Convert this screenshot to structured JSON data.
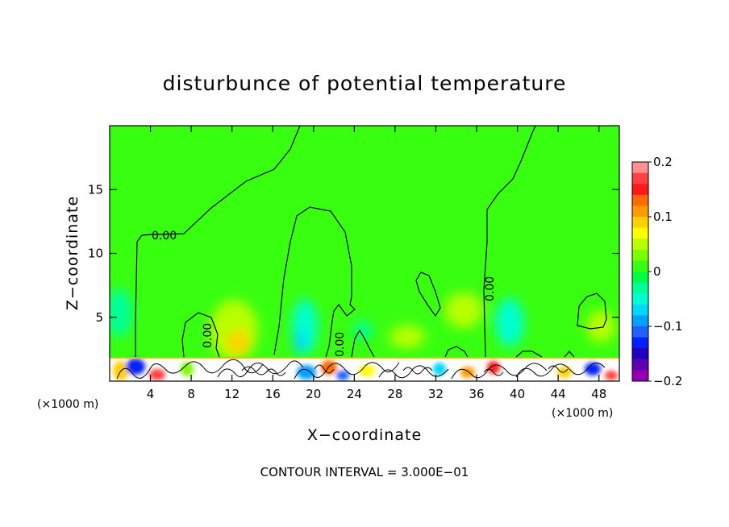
{
  "chart_data": {
    "type": "heatmap",
    "title": "disturbunce of potential temperature",
    "xlabel": "X−coordinate",
    "ylabel": "Z−coordinate",
    "x_unit": "(×1000 m)",
    "y_unit": "(×1000 m)",
    "xlim": [
      0,
      50
    ],
    "ylim": [
      0,
      20
    ],
    "x_ticks": [
      4,
      8,
      12,
      16,
      20,
      24,
      28,
      32,
      36,
      40,
      44,
      48
    ],
    "y_ticks": [
      5,
      10,
      15
    ],
    "colorbar": {
      "min": -0.2,
      "max": 0.2,
      "tick_values": [
        0.2,
        0.1,
        0,
        -0.1,
        -0.2
      ],
      "tick_labels": [
        "0.2",
        "0.1",
        "0",
        "−0.1",
        "−0.2"
      ],
      "colors": [
        "#ff9090",
        "#ff4040",
        "#ff1a1a",
        "#ff6a00",
        "#ff9a00",
        "#ffd000",
        "#ffff00",
        "#b8ff00",
        "#7cff00",
        "#38ff10",
        "#00ff40",
        "#00ff9a",
        "#00ffd0",
        "#00d8ff",
        "#00a0ff",
        "#2060ff",
        "#0020ff",
        "#2000c0",
        "#6000b0",
        "#9000b0"
      ]
    },
    "background_value": 0,
    "contour_labels": [
      "0.00",
      "0.00",
      "0.00",
      "0.00"
    ],
    "contour_interval_text": "CONTOUR INTERVAL = 3.000E−01",
    "grid": false
  }
}
